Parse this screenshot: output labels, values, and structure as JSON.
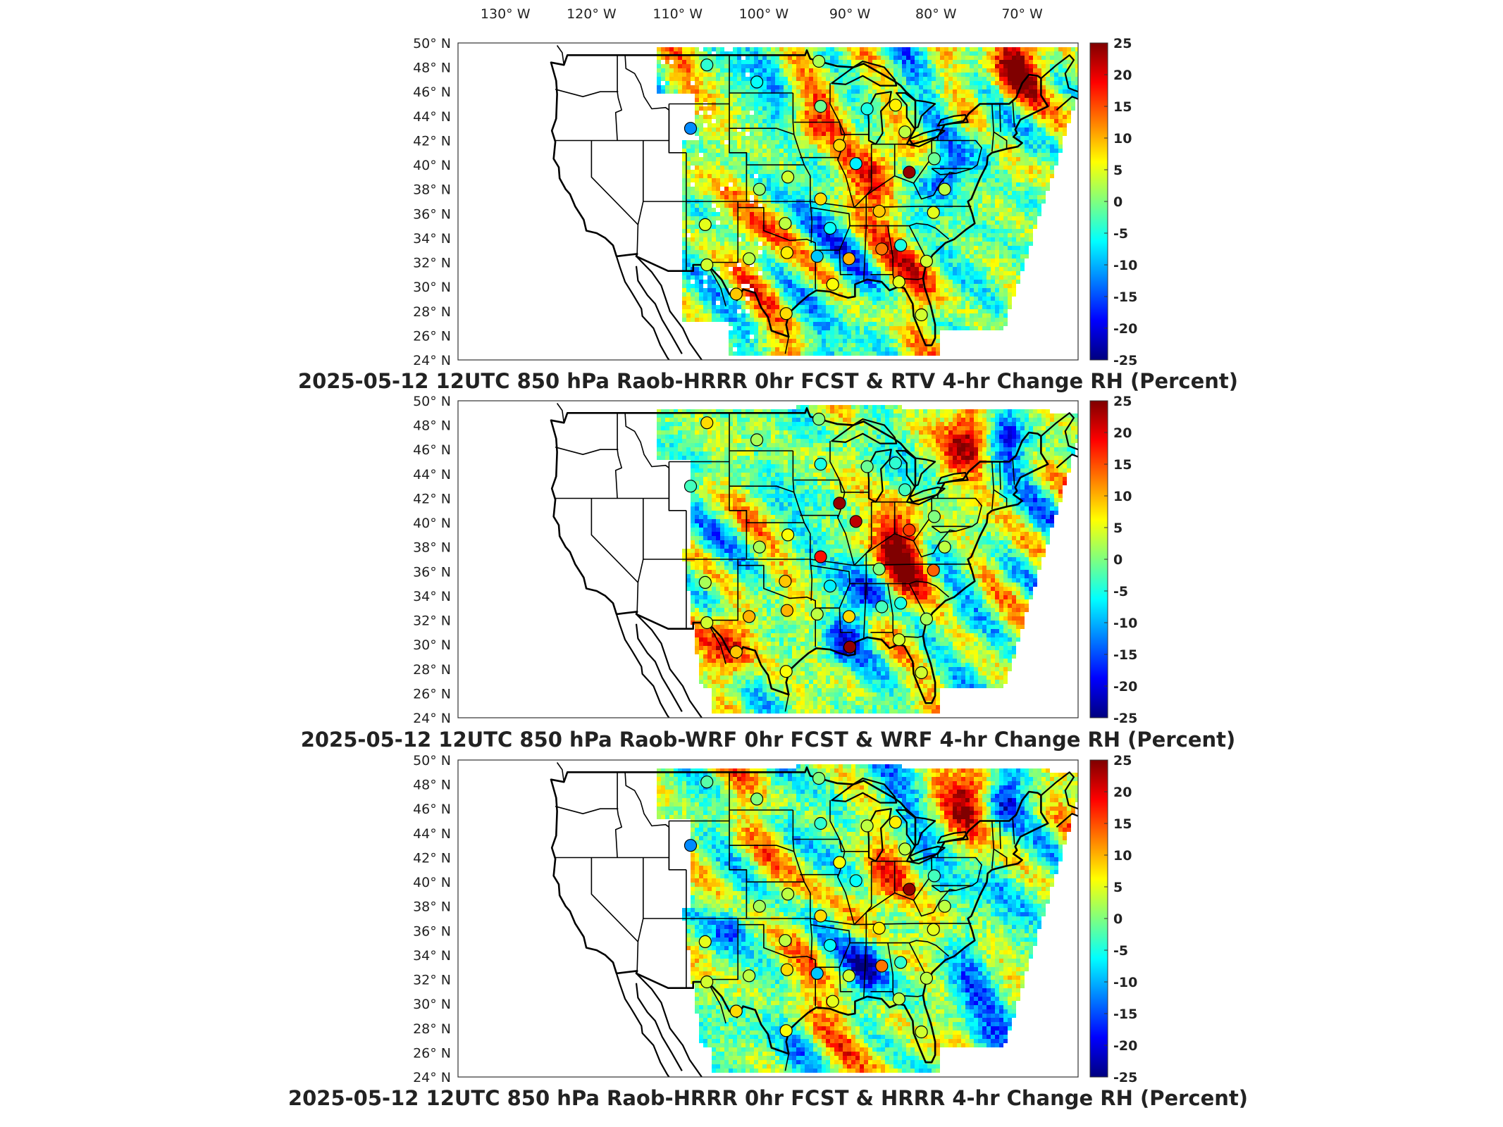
{
  "longitude_ticks": [
    "130° W",
    "120° W",
    "110° W",
    "100° W",
    "90° W",
    "80° W",
    "70° W"
  ],
  "latitude_ticks": [
    "50° N",
    "48° N",
    "46° N",
    "44° N",
    "42° N",
    "40° N",
    "38° N",
    "36° N",
    "34° N",
    "32° N",
    "30° N",
    "28° N",
    "26° N",
    "24° N"
  ],
  "colorbar": {
    "min": -25,
    "max": 25,
    "ticks": [
      "25",
      "20",
      "15",
      "10",
      "5",
      "0",
      "-5",
      "-10",
      "-15",
      "-20",
      "-25"
    ],
    "colormap": "jet",
    "colors": [
      "#00007f",
      "#0000ff",
      "#007fff",
      "#00ffff",
      "#7fff7f",
      "#ffff00",
      "#ff7f00",
      "#ff0000",
      "#7f0000"
    ]
  },
  "panels": [
    {
      "title": "2025-05-12 12UTC 850 hPa Raob-HRRR 0hr FCST & RTV 4-hr Change RH (Percent)",
      "field": "RTV 4-hr change RH",
      "stations": [
        {
          "lon": -106.6,
          "lat": 48.2,
          "value": -4
        },
        {
          "lon": -100.8,
          "lat": 46.8,
          "value": -6
        },
        {
          "lon": -108.5,
          "lat": 43.0,
          "value": -12
        },
        {
          "lon": -93.6,
          "lat": 48.5,
          "value": 2
        },
        {
          "lon": -93.4,
          "lat": 44.8,
          "value": -1
        },
        {
          "lon": -88.0,
          "lat": 44.6,
          "value": -5
        },
        {
          "lon": -84.7,
          "lat": 44.9,
          "value": 7
        },
        {
          "lon": -83.6,
          "lat": 42.7,
          "value": 3
        },
        {
          "lon": -91.2,
          "lat": 41.6,
          "value": 8
        },
        {
          "lon": -89.3,
          "lat": 40.1,
          "value": -7
        },
        {
          "lon": -83.1,
          "lat": 39.4,
          "value": 24
        },
        {
          "lon": -80.2,
          "lat": 40.5,
          "value": -1
        },
        {
          "lon": -97.2,
          "lat": 39.0,
          "value": 4
        },
        {
          "lon": -100.5,
          "lat": 38.0,
          "value": 1
        },
        {
          "lon": -93.4,
          "lat": 37.2,
          "value": 8
        },
        {
          "lon": -86.6,
          "lat": 36.2,
          "value": 9
        },
        {
          "lon": -80.3,
          "lat": 36.1,
          "value": 5
        },
        {
          "lon": -97.5,
          "lat": 35.2,
          "value": 3
        },
        {
          "lon": -92.3,
          "lat": 34.8,
          "value": -6
        },
        {
          "lon": -106.8,
          "lat": 35.1,
          "value": 5
        },
        {
          "lon": -101.7,
          "lat": 32.3,
          "value": 3
        },
        {
          "lon": -97.3,
          "lat": 32.8,
          "value": 7
        },
        {
          "lon": -93.8,
          "lat": 32.5,
          "value": -9
        },
        {
          "lon": -90.1,
          "lat": 32.3,
          "value": 10
        },
        {
          "lon": -86.3,
          "lat": 33.1,
          "value": 13
        },
        {
          "lon": -84.1,
          "lat": 33.4,
          "value": -5
        },
        {
          "lon": -81.1,
          "lat": 32.1,
          "value": 4
        },
        {
          "lon": -106.6,
          "lat": 31.8,
          "value": 4
        },
        {
          "lon": -103.2,
          "lat": 29.4,
          "value": 9
        },
        {
          "lon": -97.4,
          "lat": 27.8,
          "value": 8
        },
        {
          "lon": -92.0,
          "lat": 30.2,
          "value": 6
        },
        {
          "lon": -84.3,
          "lat": 30.4,
          "value": 5
        },
        {
          "lon": -81.7,
          "lat": 27.7,
          "value": 4
        },
        {
          "lon": -79.0,
          "lat": 38.0,
          "value": 3
        }
      ]
    },
    {
      "title": "2025-05-12 12UTC 850 hPa Raob-WRF 0hr FCST & WRF 4-hr Change RH (Percent)",
      "field": "WRF 4-hr change RH",
      "stations": [
        {
          "lon": -106.6,
          "lat": 48.2,
          "value": 8
        },
        {
          "lon": -100.8,
          "lat": 46.8,
          "value": 2
        },
        {
          "lon": -108.5,
          "lat": 43.0,
          "value": -3
        },
        {
          "lon": -93.6,
          "lat": 48.5,
          "value": 0
        },
        {
          "lon": -93.4,
          "lat": 44.8,
          "value": -5
        },
        {
          "lon": -88.0,
          "lat": 44.6,
          "value": -1
        },
        {
          "lon": -84.7,
          "lat": 44.9,
          "value": -4
        },
        {
          "lon": -83.6,
          "lat": 42.7,
          "value": -3
        },
        {
          "lon": -91.2,
          "lat": 41.6,
          "value": 24
        },
        {
          "lon": -89.3,
          "lat": 40.1,
          "value": 22
        },
        {
          "lon": -83.1,
          "lat": 39.4,
          "value": 16
        },
        {
          "lon": -80.2,
          "lat": 40.5,
          "value": 0
        },
        {
          "lon": -97.2,
          "lat": 39.0,
          "value": 6
        },
        {
          "lon": -100.5,
          "lat": 38.0,
          "value": 2
        },
        {
          "lon": -93.4,
          "lat": 37.2,
          "value": 18
        },
        {
          "lon": -86.6,
          "lat": 36.2,
          "value": 0
        },
        {
          "lon": -80.3,
          "lat": 36.1,
          "value": 14
        },
        {
          "lon": -97.5,
          "lat": 35.2,
          "value": 9
        },
        {
          "lon": -92.3,
          "lat": 34.8,
          "value": -7
        },
        {
          "lon": -106.8,
          "lat": 35.1,
          "value": 2
        },
        {
          "lon": -101.7,
          "lat": 32.3,
          "value": 10
        },
        {
          "lon": -97.3,
          "lat": 32.8,
          "value": 10
        },
        {
          "lon": -93.8,
          "lat": 32.5,
          "value": 3
        },
        {
          "lon": -90.1,
          "lat": 32.3,
          "value": 8
        },
        {
          "lon": -86.3,
          "lat": 33.1,
          "value": -3
        },
        {
          "lon": -84.1,
          "lat": 33.4,
          "value": -5
        },
        {
          "lon": -81.1,
          "lat": 32.1,
          "value": 2
        },
        {
          "lon": -106.6,
          "lat": 31.8,
          "value": 4
        },
        {
          "lon": -103.2,
          "lat": 29.4,
          "value": 9
        },
        {
          "lon": -97.4,
          "lat": 27.8,
          "value": 6
        },
        {
          "lon": -90.0,
          "lat": 29.8,
          "value": 24
        },
        {
          "lon": -84.3,
          "lat": 30.4,
          "value": 4
        },
        {
          "lon": -81.7,
          "lat": 27.7,
          "value": 4
        },
        {
          "lon": -79.0,
          "lat": 38.0,
          "value": 3
        }
      ]
    },
    {
      "title": "2025-05-12 12UTC 850 hPa Raob-HRRR 0hr FCST & HRRR 4-hr Change RH (Percent)",
      "field": "HRRR 4-hr change RH",
      "stations": [
        {
          "lon": -106.6,
          "lat": 48.2,
          "value": -2
        },
        {
          "lon": -100.8,
          "lat": 46.8,
          "value": 0
        },
        {
          "lon": -108.5,
          "lat": 43.0,
          "value": -12
        },
        {
          "lon": -93.6,
          "lat": 48.5,
          "value": 0
        },
        {
          "lon": -93.4,
          "lat": 44.8,
          "value": -4
        },
        {
          "lon": -88.0,
          "lat": 44.6,
          "value": 3
        },
        {
          "lon": -84.7,
          "lat": 44.9,
          "value": 7
        },
        {
          "lon": -83.6,
          "lat": 42.7,
          "value": 3
        },
        {
          "lon": -91.2,
          "lat": 41.6,
          "value": 6
        },
        {
          "lon": -89.3,
          "lat": 40.1,
          "value": -6
        },
        {
          "lon": -83.1,
          "lat": 39.4,
          "value": 24
        },
        {
          "lon": -80.2,
          "lat": 40.5,
          "value": -3
        },
        {
          "lon": -97.2,
          "lat": 39.0,
          "value": 3
        },
        {
          "lon": -100.5,
          "lat": 38.0,
          "value": 2
        },
        {
          "lon": -93.4,
          "lat": 37.2,
          "value": 8
        },
        {
          "lon": -86.6,
          "lat": 36.2,
          "value": 7
        },
        {
          "lon": -80.3,
          "lat": 36.1,
          "value": 5
        },
        {
          "lon": -97.5,
          "lat": 35.2,
          "value": 3
        },
        {
          "lon": -92.3,
          "lat": 34.8,
          "value": -6
        },
        {
          "lon": -106.8,
          "lat": 35.1,
          "value": 5
        },
        {
          "lon": -101.7,
          "lat": 32.3,
          "value": 3
        },
        {
          "lon": -97.3,
          "lat": 32.8,
          "value": 8
        },
        {
          "lon": -93.8,
          "lat": 32.5,
          "value": -9
        },
        {
          "lon": -90.1,
          "lat": 32.3,
          "value": 4
        },
        {
          "lon": -86.3,
          "lat": 33.1,
          "value": 13
        },
        {
          "lon": -84.1,
          "lat": 33.4,
          "value": -4
        },
        {
          "lon": -81.1,
          "lat": 32.1,
          "value": 3
        },
        {
          "lon": -106.6,
          "lat": 31.8,
          "value": 4
        },
        {
          "lon": -103.2,
          "lat": 29.4,
          "value": 8
        },
        {
          "lon": -97.4,
          "lat": 27.8,
          "value": 6
        },
        {
          "lon": -92.0,
          "lat": 30.2,
          "value": 5
        },
        {
          "lon": -84.3,
          "lat": 30.4,
          "value": 3
        },
        {
          "lon": -81.7,
          "lat": 27.7,
          "value": 4
        },
        {
          "lon": -79.0,
          "lat": 38.0,
          "value": 3
        }
      ]
    }
  ]
}
